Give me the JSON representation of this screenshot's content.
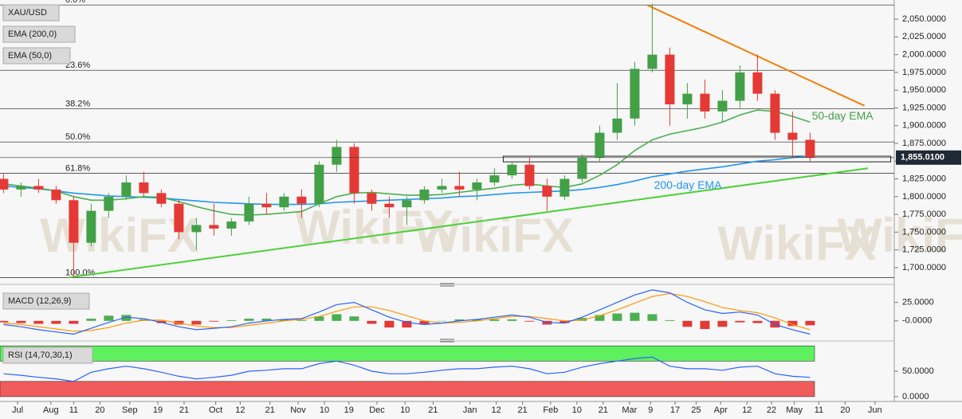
{
  "chart_data": [
    {
      "type": "candlestick",
      "title": "XAU/USD",
      "watermark": "WikiFX",
      "xlim": [
        -0.2,
        50.8
      ],
      "ylim": [
        1682,
        2077
      ],
      "yticks": [
        {
          "value": 1700,
          "label": "1,700.0000"
        },
        {
          "value": 1725,
          "label": "1,725.0000"
        },
        {
          "value": 1750,
          "label": "1,750.0000"
        },
        {
          "value": 1775,
          "label": "1,775.0000"
        },
        {
          "value": 1800,
          "label": "1,800.0000"
        },
        {
          "value": 1825,
          "label": "1,825.0000"
        },
        {
          "value": 1850,
          "label": "1,850.0000"
        },
        {
          "value": 1875,
          "label": "1,875.0000"
        },
        {
          "value": 1900,
          "label": "1,900.0000"
        },
        {
          "value": 1925,
          "label": "1,925.0000"
        },
        {
          "value": 1950,
          "label": "1,950.0000"
        },
        {
          "value": 1975,
          "label": "1,975.0000"
        },
        {
          "value": 2000,
          "label": "2,000.0000"
        },
        {
          "value": 2025,
          "label": "2,025.0000"
        },
        {
          "value": 2050,
          "label": "2,050.0000"
        }
      ],
      "up_color": "#43a047",
      "down_color": "#e53935",
      "open": [
        1825,
        1810,
        1815,
        1810,
        1795,
        1735,
        1780,
        1800,
        1820,
        1805,
        1790,
        1750,
        1760,
        1755,
        1765,
        1790,
        1785,
        1800,
        1790,
        1845,
        1870,
        1805,
        1790,
        1785,
        1795,
        1810,
        1815,
        1810,
        1820,
        1830,
        1845,
        1815,
        1800,
        1825,
        1855,
        1890,
        1910,
        1980,
        2000,
        1930,
        1945,
        1920,
        1935,
        1975,
        1945,
        1890,
        1880
      ],
      "high": [
        1832,
        1820,
        1825,
        1815,
        1800,
        1790,
        1805,
        1830,
        1835,
        1810,
        1795,
        1770,
        1790,
        1770,
        1800,
        1805,
        1805,
        1810,
        1850,
        1880,
        1875,
        1810,
        1800,
        1800,
        1815,
        1825,
        1835,
        1825,
        1840,
        1850,
        1855,
        1825,
        1830,
        1860,
        1900,
        1960,
        1990,
        2072,
        2010,
        1960,
        1965,
        1950,
        1985,
        2000,
        1950,
        1920,
        1890
      ],
      "low": [
        1805,
        1800,
        1805,
        1790,
        1685,
        1730,
        1770,
        1795,
        1800,
        1785,
        1740,
        1725,
        1745,
        1745,
        1760,
        1775,
        1780,
        1770,
        1785,
        1835,
        1790,
        1780,
        1770,
        1760,
        1790,
        1805,
        1800,
        1795,
        1815,
        1825,
        1810,
        1780,
        1795,
        1820,
        1850,
        1880,
        1900,
        1975,
        1900,
        1910,
        1910,
        1905,
        1925,
        1935,
        1880,
        1855,
        1850
      ],
      "close": [
        1810,
        1815,
        1810,
        1795,
        1735,
        1780,
        1800,
        1820,
        1805,
        1790,
        1750,
        1760,
        1755,
        1765,
        1790,
        1785,
        1800,
        1790,
        1845,
        1870,
        1805,
        1790,
        1785,
        1795,
        1810,
        1815,
        1810,
        1820,
        1830,
        1845,
        1815,
        1800,
        1825,
        1855,
        1890,
        1910,
        1980,
        2000,
        1930,
        1945,
        1920,
        1935,
        1975,
        1945,
        1890,
        1880,
        1855
      ],
      "series": [
        {
          "name": "EMA (200,0)",
          "color": "#2196f3",
          "values": [
            1815,
            1813,
            1811,
            1808,
            1805,
            1803,
            1801,
            1800,
            1799,
            1798,
            1796,
            1794,
            1792,
            1791,
            1790,
            1789,
            1789,
            1789,
            1790,
            1792,
            1793,
            1794,
            1795,
            1796,
            1797,
            1798,
            1800,
            1801,
            1803,
            1805,
            1806,
            1807,
            1808,
            1810,
            1813,
            1817,
            1822,
            1828,
            1832,
            1836,
            1839,
            1842,
            1846,
            1850,
            1852,
            1855,
            1857
          ]
        },
        {
          "name": "EMA (50,0)",
          "color": "#4caf50",
          "values": [
            1818,
            1815,
            1812,
            1808,
            1800,
            1795,
            1795,
            1797,
            1800,
            1799,
            1793,
            1786,
            1780,
            1775,
            1774,
            1775,
            1777,
            1779,
            1790,
            1800,
            1805,
            1806,
            1804,
            1802,
            1802,
            1803,
            1806,
            1809,
            1812,
            1816,
            1818,
            1815,
            1813,
            1818,
            1830,
            1845,
            1865,
            1880,
            1888,
            1893,
            1898,
            1905,
            1915,
            1922,
            1920,
            1913,
            1905
          ]
        }
      ],
      "fib_levels": [
        {
          "label": "0.0%",
          "value": 2070
        },
        {
          "label": "23.6%",
          "value": 1978
        },
        {
          "label": "38.2%",
          "value": 1924
        },
        {
          "label": "50.0%",
          "value": 1877
        },
        {
          "label": "61.8%",
          "value": 1833
        },
        {
          "label": "100.0%",
          "value": 1686
        }
      ],
      "trendlines": [
        {
          "color": "#f57c00",
          "x": [
            36.7,
            49.1
          ],
          "y": [
            2070,
            1928
          ]
        },
        {
          "color": "#4cd137",
          "x": [
            3.7,
            49.3
          ],
          "y": [
            1686,
            1840
          ]
        }
      ],
      "zone": {
        "x": [
          28.5,
          50.6
        ],
        "y": [
          1849,
          1857
        ]
      },
      "last_price": {
        "value": 1855.01,
        "label": "1,855.0100"
      },
      "annotations": [
        {
          "text": "50-day EMA",
          "color": "#43a047",
          "x": 46.1,
          "y": 1913
        },
        {
          "text": "200-day EMA",
          "color": "#2196f3",
          "x": 37.1,
          "y": 1815
        }
      ]
    },
    {
      "type": "macd",
      "title": "MACD (12,26,9)",
      "ylim": [
        -25,
        44
      ],
      "yticks": [
        {
          "value": 25,
          "label": "25.0000"
        },
        {
          "value": 0,
          "label": "-0.0000"
        }
      ],
      "macd": {
        "color": "#2962ff",
        "values": [
          -5,
          -8,
          -12,
          -15,
          -18,
          -10,
          -2,
          5,
          3,
          -2,
          -8,
          -12,
          -10,
          -8,
          -3,
          0,
          2,
          3,
          12,
          22,
          25,
          15,
          5,
          -2,
          -5,
          -3,
          0,
          2,
          5,
          8,
          5,
          -2,
          -3,
          5,
          15,
          25,
          35,
          42,
          38,
          25,
          15,
          10,
          12,
          8,
          -5,
          -12,
          -18
        ]
      },
      "signal": {
        "color": "#ff9800",
        "values": [
          -3,
          -5,
          -8,
          -11,
          -14,
          -13,
          -9,
          -3,
          1,
          1,
          -3,
          -7,
          -9,
          -9,
          -6,
          -3,
          0,
          2,
          6,
          13,
          19,
          19,
          14,
          7,
          0,
          -3,
          -2,
          0,
          3,
          6,
          6,
          3,
          0,
          1,
          7,
          15,
          24,
          33,
          37,
          33,
          26,
          18,
          14,
          11,
          4,
          -5,
          -12
        ]
      },
      "histogram": {
        "up_color": "#4caf50",
        "down_color": "#e53935",
        "values": [
          -2,
          -3,
          -4,
          -4,
          -4,
          3,
          7,
          8,
          2,
          -3,
          -5,
          -5,
          -1,
          1,
          3,
          3,
          2,
          1,
          6,
          9,
          6,
          -4,
          -9,
          -9,
          -5,
          0,
          2,
          2,
          2,
          2,
          -1,
          -5,
          -3,
          4,
          8,
          10,
          11,
          9,
          1,
          -8,
          -11,
          -8,
          -2,
          -3,
          -9,
          -7,
          -6
        ]
      }
    },
    {
      "type": "rsi",
      "title": "RSI (14,70,30,1)",
      "ylim": [
        -8,
        105
      ],
      "yticks": [
        {
          "value": 50,
          "label": "50.0000"
        },
        {
          "value": 0,
          "label": "0.0000"
        }
      ],
      "bands": [
        {
          "range": [
            70,
            100
          ],
          "color": "#5ef05e"
        },
        {
          "range": [
            0,
            30
          ],
          "color": "#f25b5b"
        }
      ],
      "color": "#2962ff",
      "values": [
        45,
        42,
        38,
        35,
        30,
        48,
        55,
        60,
        55,
        48,
        40,
        35,
        38,
        42,
        50,
        52,
        55,
        55,
        65,
        70,
        62,
        50,
        45,
        45,
        48,
        52,
        55,
        55,
        58,
        60,
        55,
        45,
        48,
        58,
        65,
        70,
        75,
        78,
        60,
        55,
        55,
        52,
        58,
        60,
        45,
        40,
        38
      ],
      "xticks": [
        {
          "value": 0.8,
          "label": "Jul"
        },
        {
          "value": 2.7,
          "label": "Aug"
        },
        {
          "value": 4.0,
          "label": "11"
        },
        {
          "value": 5.5,
          "label": "20"
        },
        {
          "value": 7.2,
          "label": "Sep"
        },
        {
          "value": 8.8,
          "label": "19"
        },
        {
          "value": 10.3,
          "label": "21"
        },
        {
          "value": 12.1,
          "label": "Oct"
        },
        {
          "value": 13.5,
          "label": "12"
        },
        {
          "value": 15.2,
          "label": "21"
        },
        {
          "value": 16.8,
          "label": "Nov"
        },
        {
          "value": 18.3,
          "label": "10"
        },
        {
          "value": 19.7,
          "label": "19"
        },
        {
          "value": 21.3,
          "label": "Dec"
        },
        {
          "value": 22.9,
          "label": "10"
        },
        {
          "value": 24.5,
          "label": "21"
        },
        {
          "value": 26.6,
          "label": "Jan"
        },
        {
          "value": 28.1,
          "label": "12"
        },
        {
          "value": 29.6,
          "label": "21"
        },
        {
          "value": 31.2,
          "label": "Feb"
        },
        {
          "value": 32.7,
          "label": "10"
        },
        {
          "value": 34.2,
          "label": "21"
        },
        {
          "value": 35.7,
          "label": "Mar"
        },
        {
          "value": 36.9,
          "label": "9"
        },
        {
          "value": 38.3,
          "label": "17"
        },
        {
          "value": 39.5,
          "label": "25"
        },
        {
          "value": 40.9,
          "label": "Apr"
        },
        {
          "value": 42.4,
          "label": "12"
        },
        {
          "value": 43.8,
          "label": "22"
        },
        {
          "value": 45.1,
          "label": "May"
        },
        {
          "value": 46.5,
          "label": "11"
        },
        {
          "value": 48.0,
          "label": "20"
        },
        {
          "value": 49.7,
          "label": "Jun"
        }
      ]
    }
  ]
}
